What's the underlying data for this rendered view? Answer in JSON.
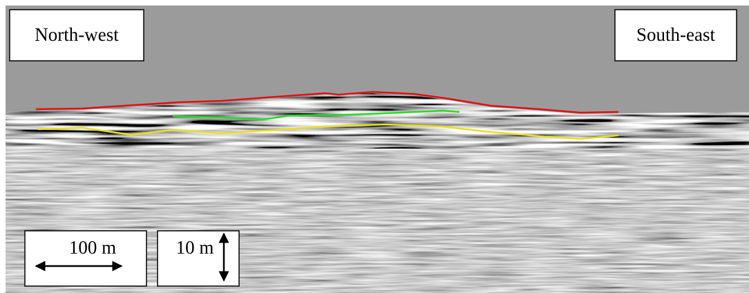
{
  "labels": {
    "left": "North-west",
    "right": "South-east"
  },
  "scale": {
    "horizontal": "100 m",
    "vertical": "10 m"
  }
}
